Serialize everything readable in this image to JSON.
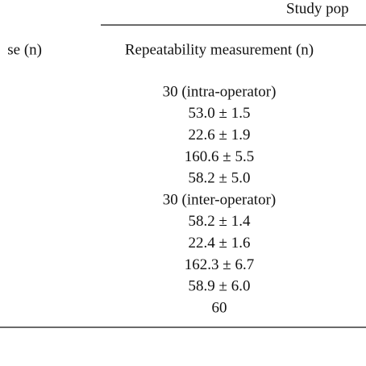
{
  "header": {
    "span_title": "Study pop"
  },
  "table": {
    "columns": [
      "se (n)",
      "Repeatability measurement (n)"
    ],
    "rows": [
      "30 (intra-operator)",
      "53.0 ± 1.5",
      "22.6 ± 1.9",
      "160.6 ± 5.5",
      "58.2 ± 5.0",
      "30 (inter-operator)",
      "58.2 ± 1.4",
      "22.4 ± 1.6",
      "162.3 ± 6.7",
      "58.9 ± 6.0",
      "60"
    ]
  }
}
